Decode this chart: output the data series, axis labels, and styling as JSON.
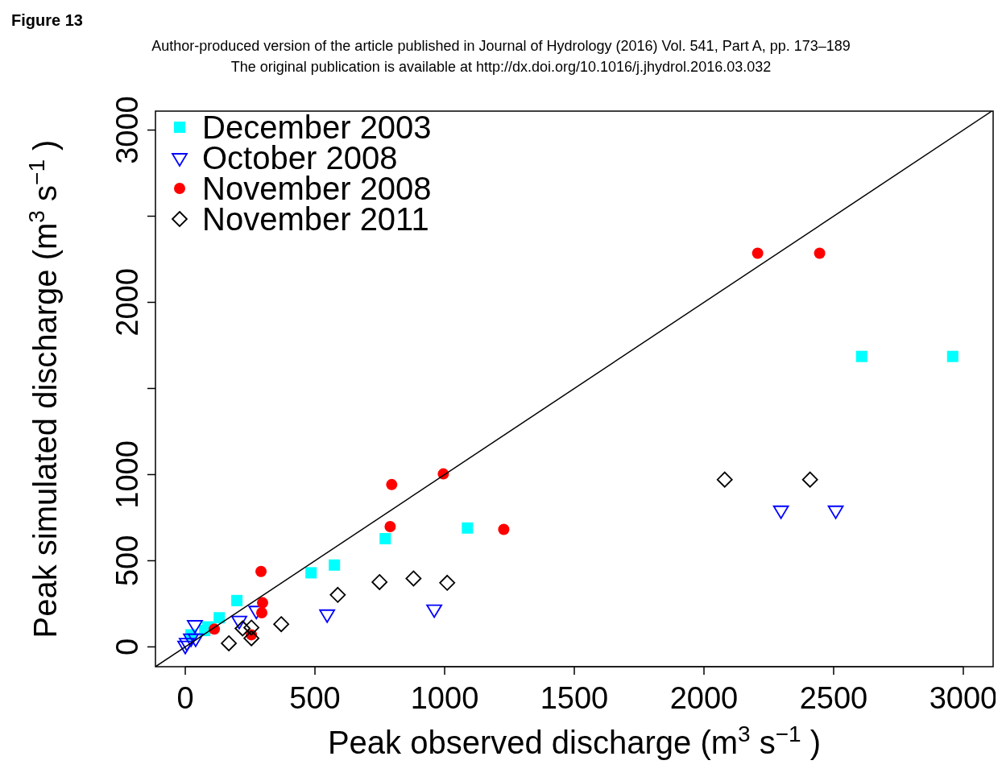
{
  "chart_data": {
    "type": "scatter",
    "title": "Figure 13",
    "annotations": [
      "Author-produced version of the article published in Journal of Hydrology (2016) Vol. 541, Part A, pp.  173–189",
      "The original publication is available at http://dx.doi.org/10.1016/j.jhydrol.2016.03.032"
    ],
    "xlabel": "Peak observed discharge (m$^{3}$ s$^{−1}$ )",
    "ylabel": "Peak simulated discharge (m$^{3}$ s$^{−1}$ )",
    "xlim": [
      -115,
      3115
    ],
    "ylim": [
      -115,
      3110
    ],
    "xticks": [
      0,
      500,
      1000,
      1500,
      2000,
      2500,
      3000
    ],
    "yticks": [
      0,
      500,
      1000,
      {
        "value": 1500,
        "label": null
      },
      2000,
      {
        "value": 2500,
        "label": null
      },
      3000
    ],
    "legend": "top left",
    "grid": false,
    "series": [
      {
        "name": "December 2003",
        "color": "#00ffff",
        "marker": "square",
        "x": [
          2608,
          2959,
          1088,
          771,
          575,
          485,
          199,
          131,
          87,
          75,
          22
        ],
        "values": [
          1686,
          1686,
          690,
          628,
          475,
          430,
          269,
          169,
          116,
          95,
          70
        ]
      },
      {
        "name": "October 2008",
        "color": "#0000ff",
        "marker": "triangle",
        "x": [
          2508,
          2297,
          960,
          547,
          208,
          274,
          37,
          22,
          40,
          6,
          0
        ],
        "values": [
          793,
          793,
          219,
          190,
          153,
          211,
          128,
          50,
          50,
          25,
          8
        ]
      },
      {
        "name": "November 2008",
        "color": "#ff0000",
        "marker": "circle",
        "x": [
          2207,
          2446,
          995,
          796,
          790,
          1228,
          292,
          298,
          295,
          112,
          255
        ],
        "values": [
          2285,
          2285,
          1004,
          942,
          698,
          682,
          438,
          256,
          198,
          103,
          70
        ]
      },
      {
        "name": "November 2011",
        "color": "#000000",
        "marker": "diamond",
        "x": [
          2080,
          2409,
          1010,
          880,
          749,
          588,
          370,
          255,
          221,
          255,
          168
        ],
        "values": [
          971,
          971,
          372,
          397,
          376,
          302,
          132,
          112,
          107,
          50,
          21
        ]
      },
      {
        "type": "line",
        "color": "#000000",
        "x": [
          -115,
          3110
        ],
        "values": [
          -115,
          3110
        ]
      }
    ]
  }
}
